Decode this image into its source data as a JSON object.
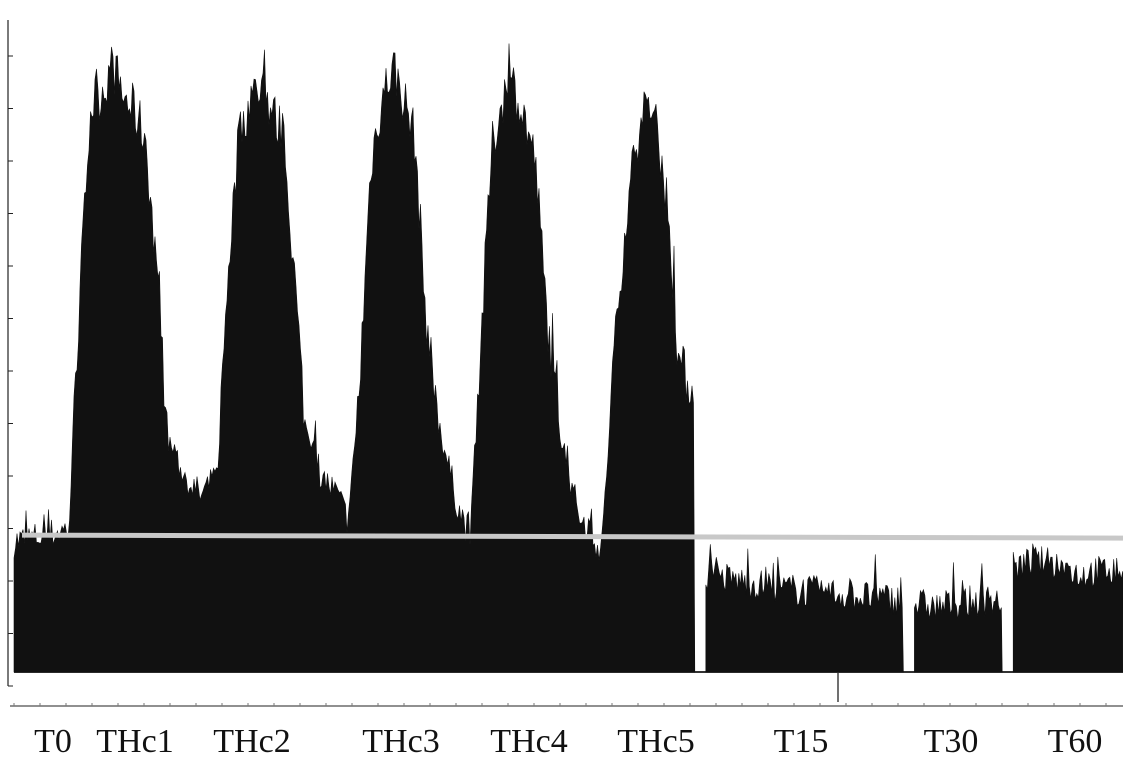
{
  "chart_data": {
    "type": "area",
    "title": "",
    "xlabel": "",
    "ylabel": "",
    "ylim": [
      0,
      1.0
    ],
    "grid": false,
    "legend": "none",
    "colors": {
      "signal": "#111111",
      "threshold": "#c8c8c8",
      "axis": "#222222"
    },
    "categories": [
      "T0",
      "THc1",
      "THc2",
      "THc3",
      "THc4",
      "THc5",
      "T15",
      "T30",
      "T60"
    ],
    "threshold": 0.21,
    "series": [
      {
        "segments": [
          {
            "x_start": 0,
            "x_end": 6.2,
            "points": [
              [
                0.0,
                0.2
              ],
              [
                0.3,
                0.21
              ],
              [
                0.5,
                0.22
              ],
              [
                0.6,
                0.58
              ],
              [
                0.7,
                0.87
              ],
              [
                0.8,
                0.89
              ],
              [
                0.9,
                0.93
              ],
              [
                1.0,
                0.88
              ],
              [
                1.1,
                0.86
              ],
              [
                1.2,
                0.82
              ],
              [
                1.3,
                0.6
              ],
              [
                1.4,
                0.36
              ],
              [
                1.55,
                0.3
              ],
              [
                1.7,
                0.27
              ],
              [
                1.85,
                0.3
              ],
              [
                1.95,
                0.62
              ],
              [
                2.05,
                0.82
              ],
              [
                2.15,
                0.88
              ],
              [
                2.25,
                0.9
              ],
              [
                2.35,
                0.86
              ],
              [
                2.45,
                0.82
              ],
              [
                2.55,
                0.62
              ],
              [
                2.65,
                0.38
              ],
              [
                2.8,
                0.3
              ],
              [
                2.95,
                0.27
              ],
              [
                3.05,
                0.23
              ],
              [
                3.15,
                0.45
              ],
              [
                3.25,
                0.78
              ],
              [
                3.35,
                0.88
              ],
              [
                3.45,
                0.93
              ],
              [
                3.55,
                0.88
              ],
              [
                3.65,
                0.82
              ],
              [
                3.75,
                0.55
              ],
              [
                3.85,
                0.4
              ],
              [
                3.95,
                0.32
              ],
              [
                4.05,
                0.25
              ],
              [
                4.15,
                0.21
              ],
              [
                4.25,
                0.5
              ],
              [
                4.35,
                0.8
              ],
              [
                4.45,
                0.88
              ],
              [
                4.55,
                0.9
              ],
              [
                4.65,
                0.85
              ],
              [
                4.75,
                0.78
              ],
              [
                4.85,
                0.55
              ],
              [
                4.95,
                0.4
              ],
              [
                5.05,
                0.3
              ],
              [
                5.15,
                0.24
              ],
              [
                5.25,
                0.22
              ],
              [
                5.35,
                0.18
              ],
              [
                5.45,
                0.45
              ],
              [
                5.55,
                0.66
              ],
              [
                5.65,
                0.8
              ],
              [
                5.75,
                0.86
              ],
              [
                5.85,
                0.84
              ],
              [
                5.95,
                0.72
              ],
              [
                6.05,
                0.48
              ],
              [
                6.2,
                0.42
              ]
            ]
          },
          {
            "x_start": 6.3,
            "x_end": 8.1,
            "points": [
              [
                6.3,
                0.15
              ],
              [
                6.6,
                0.14
              ],
              [
                6.9,
                0.13
              ],
              [
                7.2,
                0.125
              ],
              [
                7.5,
                0.12
              ],
              [
                7.8,
                0.115
              ],
              [
                8.1,
                0.11
              ]
            ]
          },
          {
            "x_start": 8.2,
            "x_end": 9.0,
            "points": [
              [
                8.2,
                0.105
              ],
              [
                8.4,
                0.1
              ],
              [
                8.6,
                0.105
              ],
              [
                8.8,
                0.11
              ],
              [
                9.0,
                0.11
              ]
            ]
          },
          {
            "x_start": 9.1,
            "x_end": 10.1,
            "points": [
              [
                9.1,
                0.16
              ],
              [
                9.3,
                0.17
              ],
              [
                9.5,
                0.165
              ],
              [
                9.7,
                0.15
              ],
              [
                9.9,
                0.155
              ],
              [
                10.1,
                0.155
              ]
            ]
          }
        ]
      }
    ]
  }
}
